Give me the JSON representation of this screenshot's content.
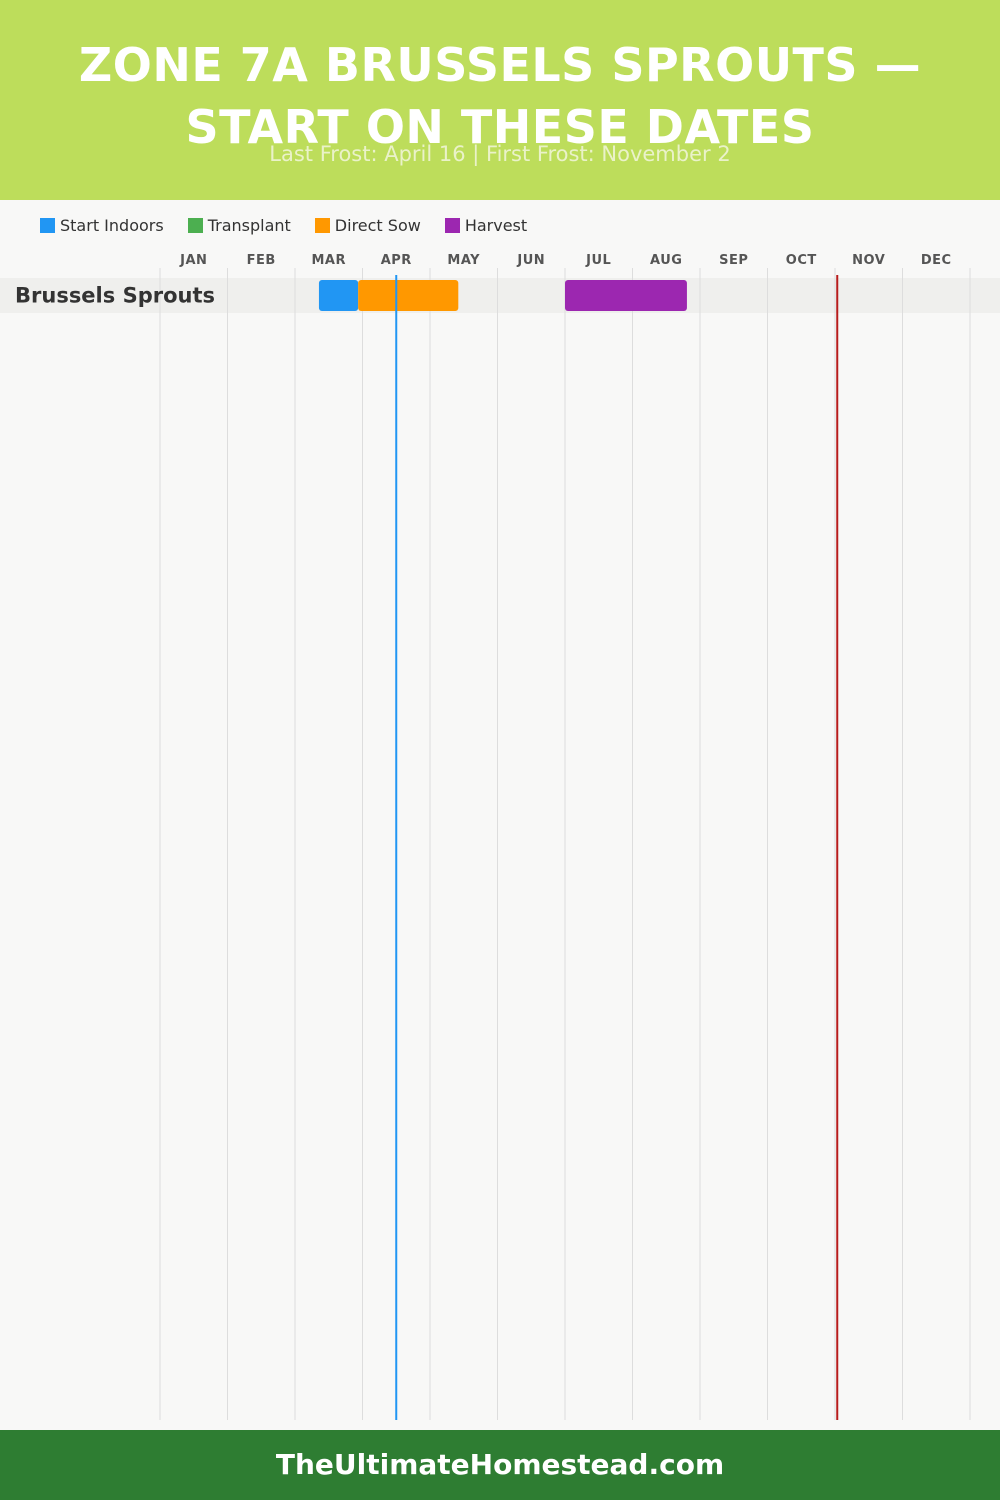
{
  "header": {
    "title_line1": "ZONE 7A BRUSSELS SPROUTS —",
    "title_line2": "START ON THESE DATES",
    "subtitle": "Last Frost: April 16 | First Frost: November 2"
  },
  "colors": {
    "header_bg": "#bddd5b",
    "footer_bg": "#2e7d32",
    "last_frost_line": "#2196f3",
    "first_frost_line": "#b71c1c"
  },
  "chart_data": {
    "type": "gantt",
    "title": "ZONE 7A BRUSSELS SPROUTS — START ON THESE DATES",
    "x_axis": {
      "type": "month",
      "months": [
        "JAN",
        "FEB",
        "MAR",
        "APR",
        "MAY",
        "JUN",
        "JUL",
        "AUG",
        "SEP",
        "OCT",
        "NOV",
        "DEC"
      ]
    },
    "legend": [
      {
        "name": "Start Indoors",
        "color": "#2196f3"
      },
      {
        "name": "Transplant",
        "color": "#4caf50"
      },
      {
        "name": "Direct Sow",
        "color": "#ff9800"
      },
      {
        "name": "Harvest",
        "color": "#9c27b0"
      }
    ],
    "legend_position": "top-left",
    "grid": true,
    "rows": [
      {
        "crop": "Brussels Sprouts",
        "bars": [
          {
            "phase": "Start Indoors",
            "start": "03-12",
            "end": "03-30"
          },
          {
            "phase": "Direct Sow",
            "start": "03-30",
            "end": "05-14"
          },
          {
            "phase": "Harvest",
            "start": "07-01",
            "end": "08-26"
          }
        ]
      }
    ],
    "markers": [
      {
        "label": "Last Frost",
        "date": "04-16",
        "color": "#2196f3"
      },
      {
        "label": "First Frost",
        "date": "11-02",
        "color": "#b71c1c"
      }
    ]
  },
  "footer": {
    "site": "TheUltimateHomestead.com"
  }
}
